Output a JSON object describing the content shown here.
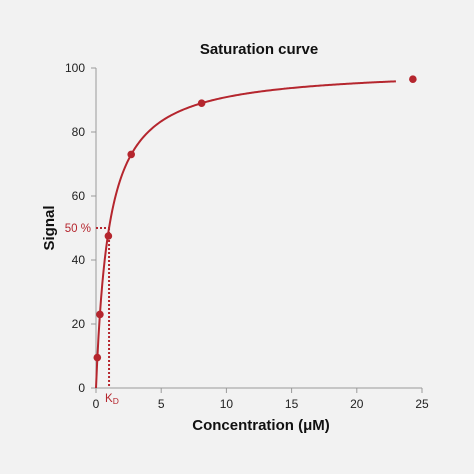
{
  "chart_data": {
    "type": "scatter",
    "title": "Saturation curve",
    "xlabel": "Concentration (μM)",
    "ylabel": "Signal",
    "xlim": [
      0,
      25
    ],
    "ylim": [
      0,
      100
    ],
    "xticks": [
      "0",
      "5",
      "10",
      "15",
      "20",
      "25"
    ],
    "yticks": [
      "0",
      "20",
      "40",
      "60",
      "80",
      "100"
    ],
    "grid": false,
    "points": [
      {
        "x": 0.1,
        "y": 9.5
      },
      {
        "x": 0.3,
        "y": 23
      },
      {
        "x": 0.95,
        "y": 47.5
      },
      {
        "x": 2.7,
        "y": 73
      },
      {
        "x": 8.1,
        "y": 89
      },
      {
        "x": 24.3,
        "y": 96.5
      }
    ],
    "fit": {
      "model": "one-site binding",
      "bmax": 100,
      "kd": 1.0,
      "x_range": [
        0,
        23
      ],
      "color": "#b5262e"
    },
    "kd_annotation": {
      "x": 1.0,
      "y": 50,
      "label_y": "50 %",
      "label_x": "K",
      "label_x_sub": "D"
    },
    "colors": {
      "series": "#b5262e",
      "axis": "#999999",
      "background": "#f2f2f2"
    }
  }
}
